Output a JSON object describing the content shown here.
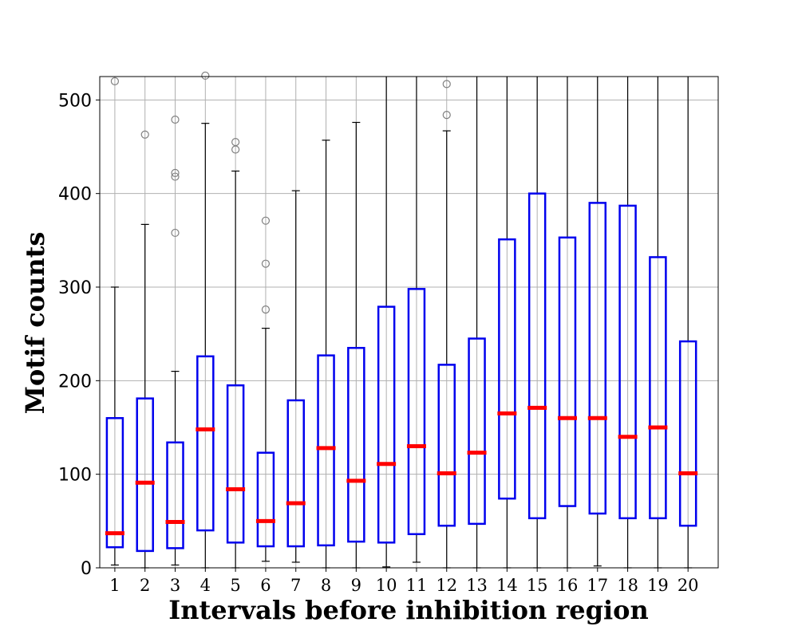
{
  "chart_data": {
    "type": "box",
    "title": "",
    "xlabel": "Intervals before inhibition region",
    "ylabel": "Motif counts",
    "ylim": [
      0,
      525
    ],
    "yticks": [
      0,
      100,
      200,
      300,
      400,
      500
    ],
    "grid": true,
    "colors": {
      "box": "#0000ee",
      "median": "#ff0000",
      "whisker": "#000000",
      "flier": "#808080",
      "grid": "#b0b0b0"
    },
    "categories": [
      "1",
      "2",
      "3",
      "4",
      "5",
      "6",
      "7",
      "8",
      "9",
      "10",
      "11",
      "12",
      "13",
      "14",
      "15",
      "16",
      "17",
      "18",
      "19",
      "20"
    ],
    "boxes": [
      {
        "q1": 22,
        "median": 37,
        "q3": 160,
        "whislo": 3,
        "whishi": 300,
        "fliers": [
          520
        ]
      },
      {
        "q1": 18,
        "median": 91,
        "q3": 181,
        "whislo": 0,
        "whishi": 367,
        "fliers": [
          463
        ]
      },
      {
        "q1": 21,
        "median": 49,
        "q3": 134,
        "whislo": 3,
        "whishi": 210,
        "fliers": [
          358,
          418,
          422,
          479
        ]
      },
      {
        "q1": 40,
        "median": 148,
        "q3": 226,
        "whislo": 0,
        "whishi": 475,
        "fliers": [
          526
        ]
      },
      {
        "q1": 27,
        "median": 84,
        "q3": 195,
        "whislo": 0,
        "whishi": 424,
        "fliers": [
          447,
          455
        ]
      },
      {
        "q1": 23,
        "median": 50,
        "q3": 123,
        "whislo": 7,
        "whishi": 256,
        "fliers": [
          276,
          325,
          371
        ]
      },
      {
        "q1": 23,
        "median": 69,
        "q3": 179,
        "whislo": 6,
        "whishi": 403,
        "fliers": []
      },
      {
        "q1": 24,
        "median": 128,
        "q3": 227,
        "whislo": 0,
        "whishi": 457,
        "fliers": []
      },
      {
        "q1": 28,
        "median": 93,
        "q3": 235,
        "whislo": 0,
        "whishi": 476,
        "fliers": []
      },
      {
        "q1": 27,
        "median": 111,
        "q3": 279,
        "whislo": 1,
        "whishi": 540,
        "fliers": []
      },
      {
        "q1": 36,
        "median": 130,
        "q3": 298,
        "whislo": 6,
        "whishi": 540,
        "fliers": []
      },
      {
        "q1": 45,
        "median": 101,
        "q3": 217,
        "whislo": 0,
        "whishi": 467,
        "fliers": [
          484,
          517
        ]
      },
      {
        "q1": 47,
        "median": 123,
        "q3": 245,
        "whislo": 0,
        "whishi": 540,
        "fliers": []
      },
      {
        "q1": 74,
        "median": 165,
        "q3": 351,
        "whislo": 0,
        "whishi": 540,
        "fliers": []
      },
      {
        "q1": 53,
        "median": 171,
        "q3": 400,
        "whislo": 0,
        "whishi": 540,
        "fliers": []
      },
      {
        "q1": 66,
        "median": 160,
        "q3": 353,
        "whislo": 0,
        "whishi": 540,
        "fliers": []
      },
      {
        "q1": 58,
        "median": 160,
        "q3": 390,
        "whislo": 2,
        "whishi": 540,
        "fliers": []
      },
      {
        "q1": 53,
        "median": 140,
        "q3": 387,
        "whislo": 0,
        "whishi": 540,
        "fliers": []
      },
      {
        "q1": 53,
        "median": 150,
        "q3": 332,
        "whislo": 0,
        "whishi": 540,
        "fliers": []
      },
      {
        "q1": 45,
        "median": 101,
        "q3": 242,
        "whislo": 0,
        "whishi": 540,
        "fliers": []
      }
    ]
  }
}
